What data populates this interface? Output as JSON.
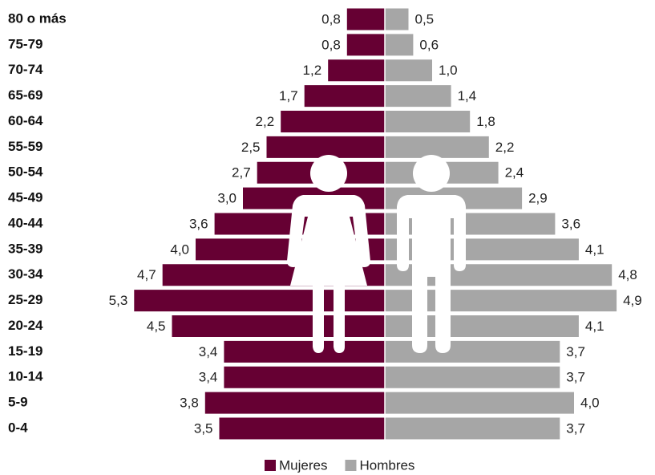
{
  "chart_data": {
    "type": "pyramid",
    "categories": [
      "80 o más",
      "75-79",
      "70-74",
      "65-69",
      "60-64",
      "55-59",
      "50-54",
      "45-49",
      "40-44",
      "35-39",
      "30-34",
      "25-29",
      "20-24",
      "15-19",
      "10-14",
      "5-9",
      "0-4"
    ],
    "series": [
      {
        "name": "Mujeres",
        "color": "#660033",
        "values": [
          0.8,
          0.8,
          1.2,
          1.7,
          2.2,
          2.5,
          2.7,
          3.0,
          3.6,
          4.0,
          4.7,
          5.3,
          4.5,
          3.4,
          3.4,
          3.8,
          3.5
        ],
        "value_labels": [
          "0,8",
          "0,8",
          "1,2",
          "1,7",
          "2,2",
          "2,5",
          "2,7",
          "3,0",
          "3,6",
          "4,0",
          "4,7",
          "5,3",
          "4,5",
          "3,4",
          "3,4",
          "3,8",
          "3,5"
        ]
      },
      {
        "name": "Hombres",
        "color": "#a6a6a6",
        "values": [
          0.5,
          0.6,
          1.0,
          1.4,
          1.8,
          2.2,
          2.4,
          2.9,
          3.6,
          4.1,
          4.8,
          4.9,
          4.1,
          3.7,
          3.7,
          4.0,
          3.7
        ],
        "value_labels": [
          "0,5",
          "0,6",
          "1,0",
          "1,4",
          "1,8",
          "2,2",
          "2,4",
          "2,9",
          "3,6",
          "4,1",
          "4,8",
          "4,9",
          "4,1",
          "3,7",
          "3,7",
          "4,0",
          "3,7"
        ]
      }
    ]
  }
}
